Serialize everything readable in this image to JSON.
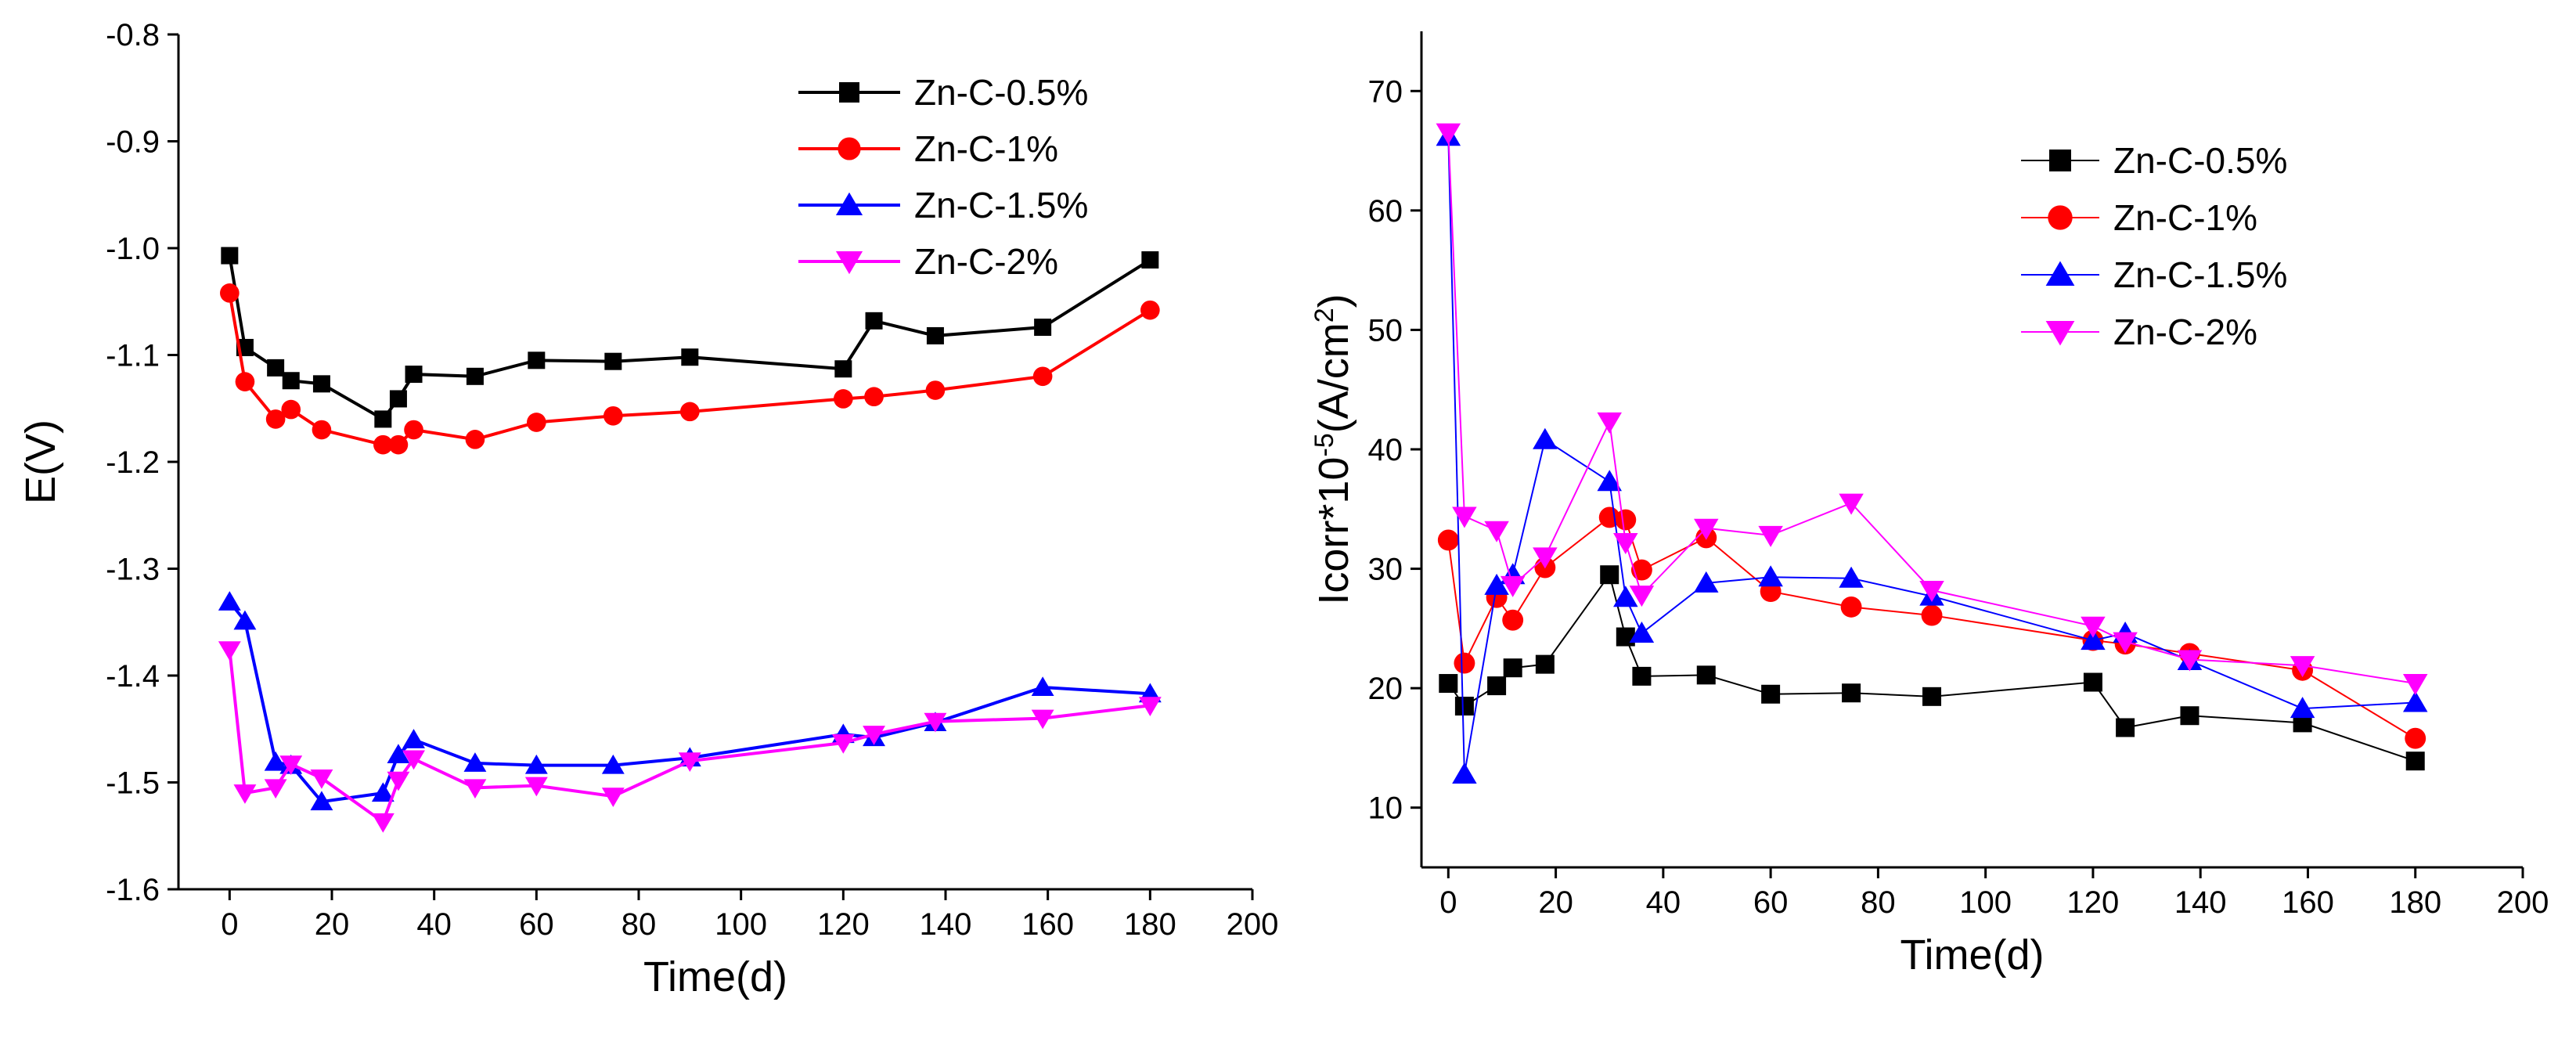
{
  "colors": {
    "Zn-C-0.5%": "#000000",
    "Zn-C-1%": "#ff0000",
    "Zn-C-1.5%": "#0000ff",
    "Zn-C-2%": "#ff00ff"
  },
  "chart_data": [
    {
      "type": "line",
      "xlabel": "Time(d)",
      "ylabel": "E(V)",
      "xlim": [
        -10,
        200
      ],
      "ylim": [
        -1.6,
        -0.8
      ],
      "xticks": [
        "0",
        "20",
        "40",
        "60",
        "80",
        "100",
        "120",
        "140",
        "160",
        "180",
        "200"
      ],
      "yticks": [
        "-1.6",
        "-1.5",
        "-1.4",
        "-1.3",
        "-1.2",
        "-1.1",
        "-1.0",
        "-0.9",
        "-0.8"
      ],
      "legend_position": "top-right",
      "x": [
        0,
        3,
        9,
        12,
        18,
        30,
        33,
        36,
        48,
        60,
        75,
        90,
        120,
        126,
        138,
        159,
        180
      ],
      "series": [
        {
          "name": "Zn-C-0.5%",
          "marker": "square",
          "color": "#000000",
          "values": [
            -1.007,
            -1.093,
            -1.112,
            -1.124,
            -1.127,
            -1.16,
            -1.141,
            -1.118,
            -1.12,
            -1.105,
            -1.106,
            -1.102,
            -1.113,
            -1.068,
            -1.082,
            -1.074,
            -1.011
          ]
        },
        {
          "name": "Zn-C-1%",
          "marker": "circle",
          "color": "#ff0000",
          "values": [
            -1.042,
            -1.125,
            -1.16,
            -1.151,
            -1.17,
            -1.184,
            -1.184,
            -1.17,
            -1.179,
            -1.163,
            -1.157,
            -1.153,
            -1.141,
            -1.139,
            -1.133,
            -1.12,
            -1.058
          ]
        },
        {
          "name": "Zn-C-1.5%",
          "marker": "triangle-up",
          "color": "#0000ff",
          "values": [
            -1.331,
            -1.349,
            -1.481,
            -1.484,
            -1.518,
            -1.51,
            -1.474,
            -1.46,
            -1.482,
            -1.484,
            -1.484,
            -1.477,
            -1.455,
            -1.458,
            -1.444,
            -1.411,
            -1.417
          ]
        },
        {
          "name": "Zn-C-2%",
          "marker": "triangle-down",
          "color": "#ff00ff",
          "values": [
            -1.376,
            -1.51,
            -1.505,
            -1.483,
            -1.496,
            -1.537,
            -1.498,
            -1.478,
            -1.505,
            -1.503,
            -1.513,
            -1.48,
            -1.463,
            -1.455,
            -1.443,
            -1.44,
            -1.428
          ]
        }
      ]
    },
    {
      "type": "line",
      "xlabel": "Time(d)",
      "ylabel": "Icorr*10-5(A/cm2)",
      "ylabel_parts": {
        "base": "Icorr*10",
        "exp": "-5",
        "mid": "(A/cm",
        "sup": "2",
        "end": ")"
      },
      "xlim": [
        -5,
        200
      ],
      "ylim": [
        5,
        75
      ],
      "xticks": [
        "0",
        "20",
        "40",
        "60",
        "80",
        "100",
        "120",
        "140",
        "160",
        "180",
        "200"
      ],
      "yticks": [
        "10",
        "20",
        "30",
        "40",
        "50",
        "60",
        "70"
      ],
      "legend_position": "top-right",
      "x": [
        0,
        3,
        9,
        12,
        18,
        30,
        33,
        36,
        48,
        60,
        75,
        90,
        120,
        126,
        138,
        159,
        180
      ],
      "series": [
        {
          "name": "Zn-C-0.5%",
          "marker": "square",
          "color": "#000000",
          "values": [
            20.4,
            18.5,
            20.2,
            21.7,
            22.0,
            29.5,
            24.3,
            21.0,
            21.1,
            19.5,
            19.6,
            19.3,
            20.5,
            16.7,
            17.7,
            17.1,
            13.9
          ]
        },
        {
          "name": "Zn-C-1%",
          "marker": "circle",
          "color": "#ff0000",
          "values": [
            32.4,
            22.1,
            27.6,
            25.7,
            30.1,
            34.3,
            34.1,
            29.9,
            32.6,
            28.1,
            26.8,
            26.1,
            24.0,
            23.7,
            22.9,
            21.5,
            15.8
          ]
        },
        {
          "name": "Zn-C-1.5%",
          "marker": "triangle-up",
          "color": "#0000ff",
          "values": [
            66.2,
            12.8,
            28.6,
            29.5,
            40.8,
            37.3,
            27.6,
            24.6,
            28.8,
            29.3,
            29.2,
            27.7,
            24.0,
            24.6,
            22.3,
            18.3,
            18.8
          ]
        },
        {
          "name": "Zn-C-2%",
          "marker": "triangle-down",
          "color": "#ff00ff",
          "values": [
            66.5,
            34.4,
            33.2,
            28.6,
            31.0,
            42.3,
            32.2,
            27.8,
            33.4,
            32.8,
            35.5,
            28.2,
            25.2,
            23.9,
            22.4,
            21.9,
            20.4
          ]
        }
      ]
    }
  ]
}
